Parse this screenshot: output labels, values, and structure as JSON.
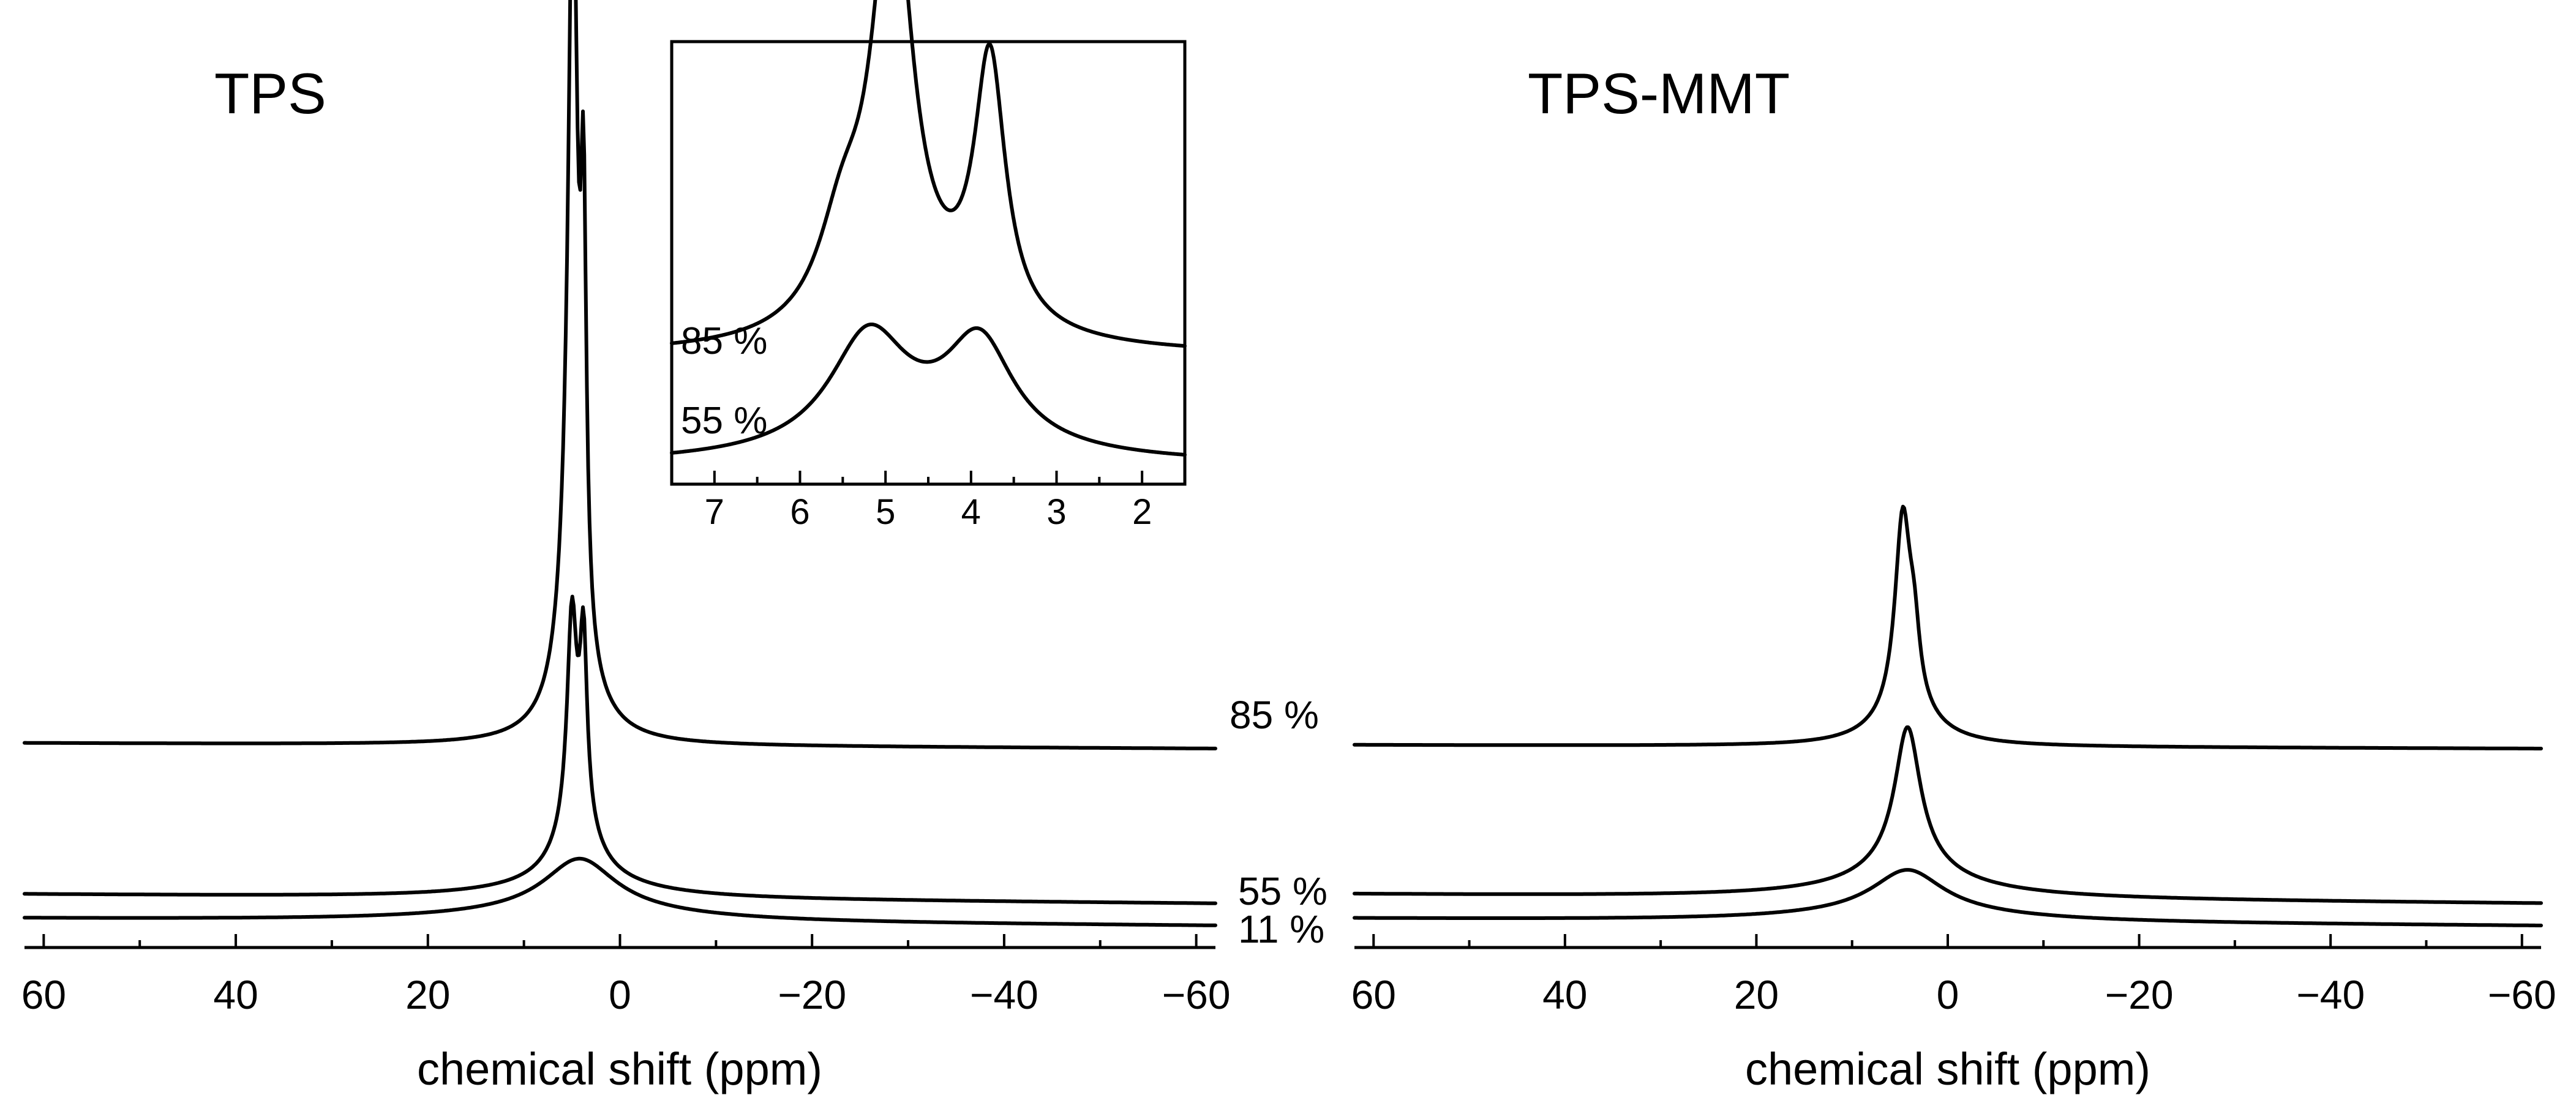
{
  "chart_data": [
    {
      "type": "line",
      "title": "TPS",
      "xlabel": "chemical shift (ppm)",
      "ylabel": "",
      "xlim": [
        62,
        -62
      ],
      "x_reversed": true,
      "xticks": [
        60,
        40,
        20,
        0,
        -20,
        -40,
        -60
      ],
      "xtick_labels": [
        "60",
        "40",
        "20",
        "0",
        "−20",
        "−40",
        "−60"
      ],
      "series": [
        {
          "name": "85 %",
          "label": "85 %",
          "offset": 0.95,
          "baseline_tilt": 0.03,
          "peaks": [
            {
              "center": 4.9,
              "width": 0.55,
              "height": 3.9
            },
            {
              "center": 3.8,
              "width": 0.35,
              "height": 2.15
            },
            {
              "center": 5.3,
              "width": 1.2,
              "height": 0.6
            },
            {
              "center": 4.6,
              "width": 3.5,
              "height": 0.22
            }
          ]
        },
        {
          "name": "55 %",
          "label": "55 %",
          "offset": 0.12,
          "baseline_tilt": 0.05,
          "peaks": [
            {
              "center": 5.0,
              "width": 0.6,
              "height": 1.1
            },
            {
              "center": 3.8,
              "width": 0.45,
              "height": 0.95
            },
            {
              "center": 4.5,
              "width": 2.5,
              "height": 0.33
            },
            {
              "center": 4.5,
              "width": 9.0,
              "height": 0.08
            }
          ]
        },
        {
          "name": "11 %",
          "label": "11 %",
          "offset": 0.0,
          "baseline_tilt": 0.04,
          "peaks": [
            {
              "center": 4.2,
              "width": 4.5,
              "height": 0.28
            },
            {
              "center": 4.2,
              "width": 14.0,
              "height": 0.06
            }
          ]
        }
      ]
    },
    {
      "type": "line",
      "title": "TPS-MMT",
      "xlabel": "chemical shift (ppm)",
      "ylabel": "",
      "xlim": [
        62,
        -62
      ],
      "x_reversed": true,
      "xticks": [
        60,
        40,
        20,
        0,
        -20,
        -40,
        -60
      ],
      "xtick_labels": [
        "60",
        "40",
        "20",
        "0",
        "−20",
        "−40",
        "−60"
      ],
      "series": [
        {
          "name": "85 %",
          "offset": 0.95,
          "baseline_tilt": 0.02,
          "peaks": [
            {
              "center": 4.7,
              "width": 1.0,
              "height": 1.05
            },
            {
              "center": 3.5,
              "width": 0.7,
              "height": 0.3
            },
            {
              "center": 4.4,
              "width": 4.0,
              "height": 0.16
            }
          ]
        },
        {
          "name": "55 %",
          "offset": 0.12,
          "baseline_tilt": 0.05,
          "peaks": [
            {
              "center": 4.2,
              "width": 1.6,
              "height": 0.72
            },
            {
              "center": 4.2,
              "width": 5.0,
              "height": 0.14
            },
            {
              "center": 4.2,
              "width": 12.0,
              "height": 0.06
            }
          ]
        },
        {
          "name": "11 %",
          "offset": 0.0,
          "baseline_tilt": 0.04,
          "peaks": [
            {
              "center": 4.2,
              "width": 4.5,
              "height": 0.23
            },
            {
              "center": 4.2,
              "width": 14.0,
              "height": 0.05
            }
          ]
        }
      ]
    },
    {
      "type": "line",
      "title": "",
      "role": "inset (zoom of TPS panel)",
      "xlabel": "",
      "ylabel": "",
      "xlim": [
        7.5,
        1.5
      ],
      "x_reversed": true,
      "xticks": [
        7,
        6,
        5,
        4,
        3,
        2
      ],
      "xtick_labels": [
        "7",
        "6",
        "5",
        "4",
        "3",
        "2"
      ],
      "series": [
        {
          "name": "85 %",
          "label": "85 %",
          "offset": 0.3,
          "baseline_tilt": 0.0,
          "peaks": [
            {
              "center": 4.92,
              "width": 0.28,
              "height": 1.18
            },
            {
              "center": 3.78,
              "width": 0.22,
              "height": 0.72
            },
            {
              "center": 5.5,
              "width": 0.35,
              "height": 0.25
            },
            {
              "center": 4.5,
              "width": 1.2,
              "height": 0.08
            }
          ]
        },
        {
          "name": "55 %",
          "label": "55 %",
          "offset": 0.0,
          "baseline_tilt": 0.0,
          "peaks": [
            {
              "center": 5.2,
              "width": 0.55,
              "height": 0.3
            },
            {
              "center": 3.9,
              "width": 0.48,
              "height": 0.28
            },
            {
              "center": 4.6,
              "width": 1.5,
              "height": 0.06
            }
          ]
        }
      ]
    }
  ]
}
